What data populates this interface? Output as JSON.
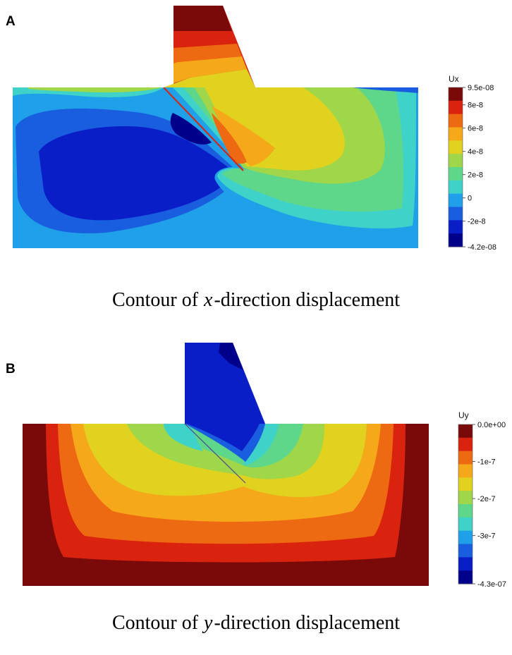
{
  "panels": [
    {
      "id": "A",
      "label": "A",
      "caption_var": "x",
      "caption_rest": "-direction displacement",
      "caption_prefix": "Contour of",
      "colorbar_title": "Ux",
      "tick_labels": [
        "9.5e-08",
        "8e-8",
        "6e-8",
        "4e-8",
        "2e-8",
        "0",
        "-2e-8",
        "-4.2e-08"
      ]
    },
    {
      "id": "B",
      "label": "B",
      "caption_var": "y",
      "caption_rest": "-direction displacement",
      "caption_prefix": "Contour of",
      "colorbar_title": "Uy",
      "tick_labels": [
        "0.0e+00",
        "-1e-7",
        "-2e-7",
        "-3e-7",
        "-4.3e-07"
      ]
    }
  ],
  "colors": {
    "c0": "#00008b",
    "c1": "#0a1ec8",
    "c2": "#1a5ee0",
    "c3": "#1fa0e8",
    "c4": "#3fd2c8",
    "c5": "#5fd78a",
    "c6": "#9fd64a",
    "c7": "#e0d21e",
    "c8": "#f5a81a",
    "c9": "#ee6a12",
    "c10": "#d9230f",
    "c11": "#7a0a0a"
  },
  "chart_data": [
    {
      "type": "heatmap",
      "title": "",
      "field": "Ux",
      "xlabel": "",
      "ylabel": "",
      "range": [
        -4.2e-08,
        9.5e-08
      ],
      "colorbar_ticks": [
        9.5e-08,
        8e-08,
        6e-08,
        4e-08,
        2e-08,
        0,
        -2e-08,
        -4.2e-08
      ],
      "colorbar_tick_labels": [
        "9.5e-08",
        "8e-8",
        "6e-8",
        "4e-8",
        "2e-8",
        "0",
        "-2e-8",
        "-4.2e-08"
      ],
      "legend": "right"
    },
    {
      "type": "heatmap",
      "title": "",
      "field": "Uy",
      "xlabel": "",
      "ylabel": "",
      "range": [
        -4.3e-07,
        0
      ],
      "colorbar_ticks": [
        0,
        -1e-07,
        -2e-07,
        -3e-07,
        -4.3e-07
      ],
      "colorbar_tick_labels": [
        "0.0e+00",
        "-1e-7",
        "-2e-7",
        "-3e-7",
        "-4.3e-07"
      ],
      "legend": "right"
    }
  ]
}
